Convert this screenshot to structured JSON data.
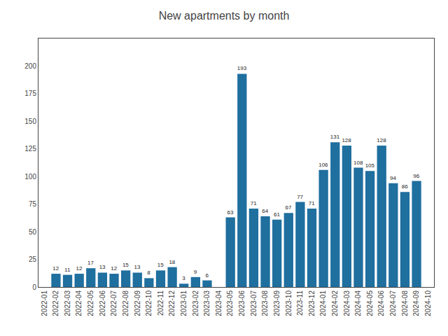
{
  "chart_data": {
    "type": "bar",
    "title": "New apartments by month",
    "categories": [
      "2022-01",
      "2022-02",
      "2022-03",
      "2022-04",
      "2022-05",
      "2022-06",
      "2022-07",
      "2022-08",
      "2022-09",
      "2022-10",
      "2022-11",
      "2022-12",
      "2023-01",
      "2023-02",
      "2023-03",
      "2023-04",
      "2023-05",
      "2023-06",
      "2023-07",
      "2023-08",
      "2023-09",
      "2023-10",
      "2023-11",
      "2023-12",
      "2024-01",
      "2024-02",
      "2024-03",
      "2024-04",
      "2024-05",
      "2024-06",
      "2024-07",
      "2024-08",
      "2024-09",
      "2024-10"
    ],
    "values": [
      0,
      12,
      11,
      12,
      17,
      13,
      12,
      15,
      13,
      8,
      15,
      18,
      3,
      9,
      6,
      0,
      63,
      193,
      71,
      64,
      61,
      67,
      77,
      71,
      106,
      131,
      128,
      108,
      105,
      128,
      94,
      86,
      96,
      0
    ],
    "value_labels": [
      null,
      "12",
      "11",
      "12",
      "17",
      "13",
      "12",
      "15",
      "13",
      "8",
      "15",
      "18",
      "3",
      "9",
      "6",
      null,
      "63",
      "193",
      "71",
      "64",
      "61",
      "67",
      "77",
      "71",
      "106",
      "131",
      "128",
      "108",
      "105",
      "128",
      "94",
      "86",
      "96",
      null
    ],
    "data_labels": true,
    "color": "#1f6f9f",
    "ylim": [
      0,
      225
    ],
    "yticks": [
      0,
      25,
      50,
      75,
      100,
      125,
      150,
      175,
      200
    ],
    "grid": false
  }
}
